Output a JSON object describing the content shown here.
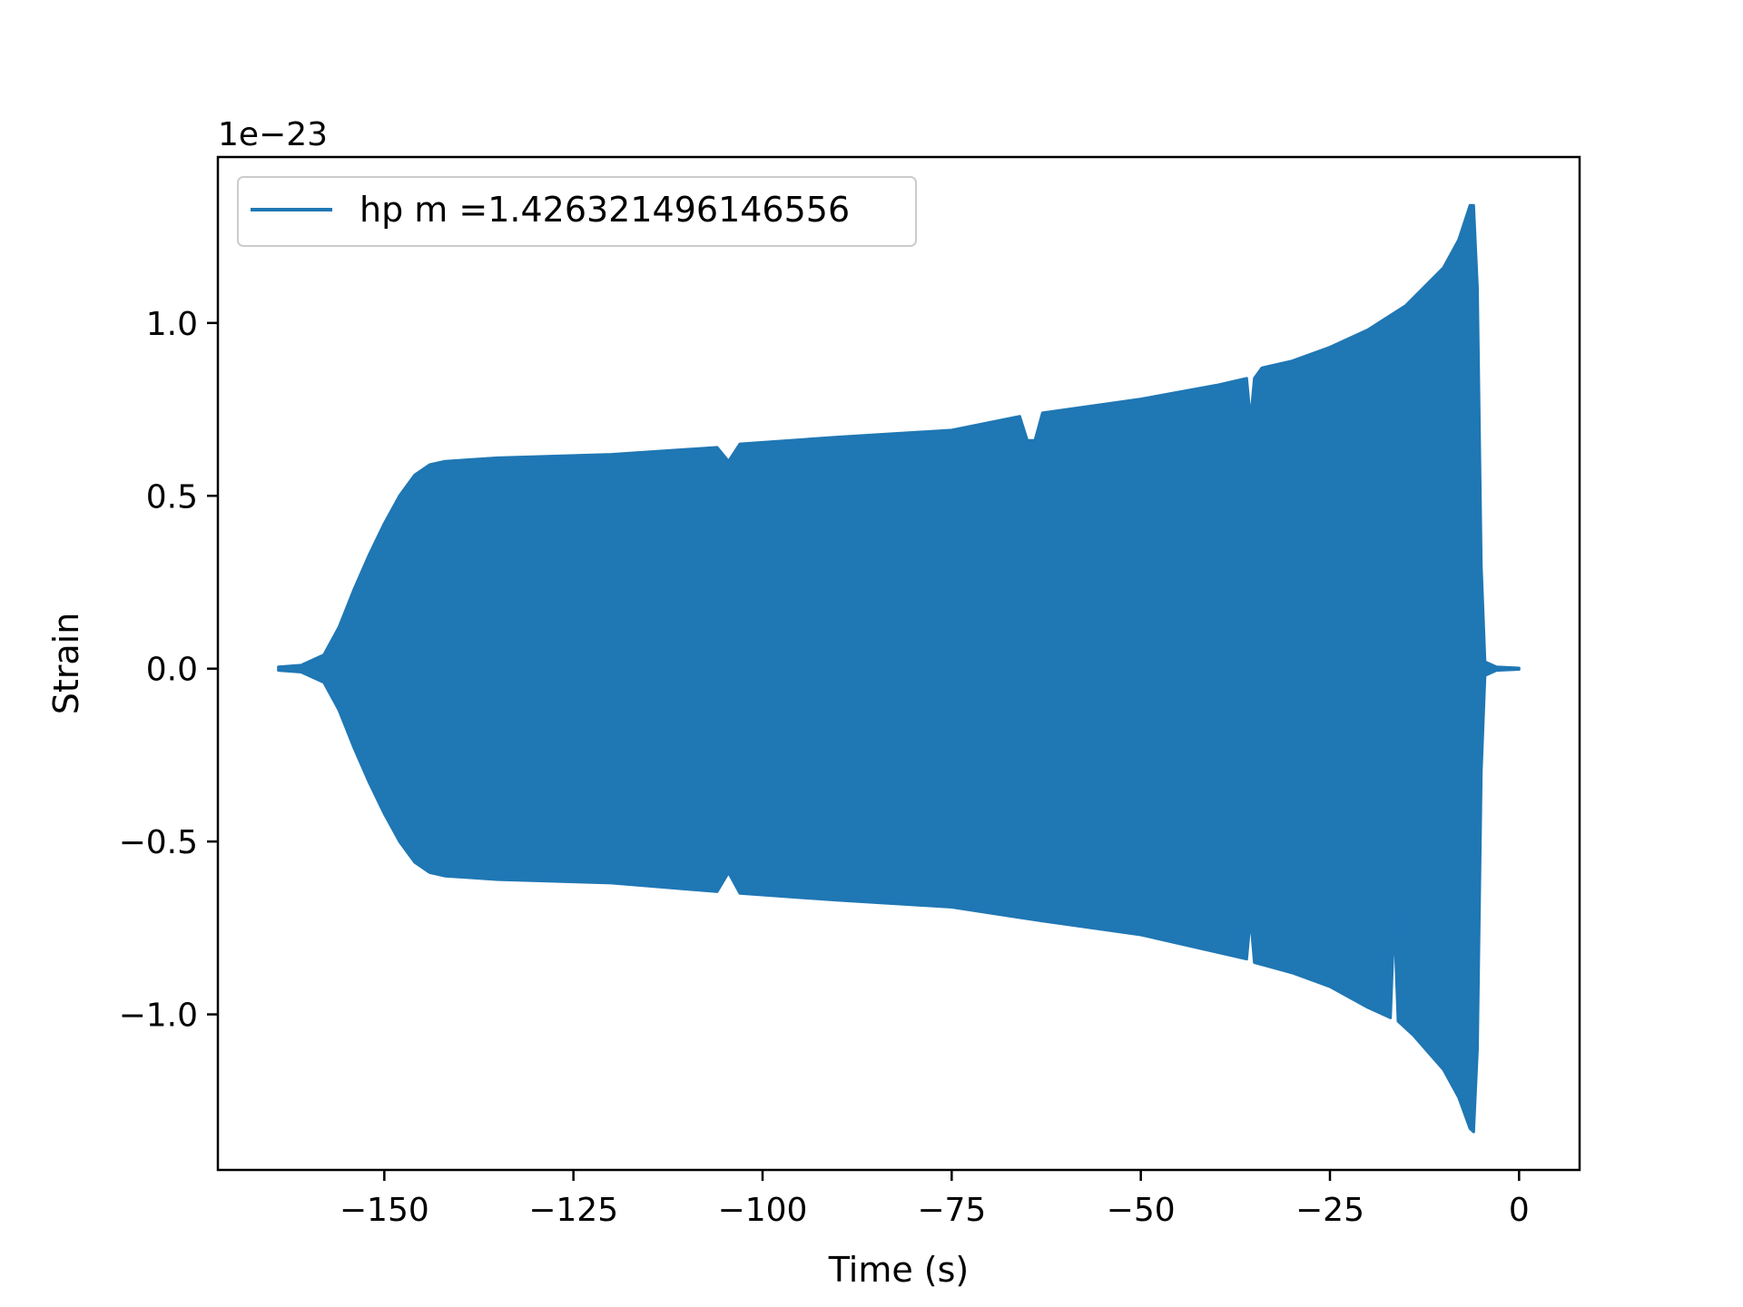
{
  "chart_data": {
    "type": "line",
    "xlabel": "Time (s)",
    "ylabel": "Strain",
    "y_offset_label": "1e−23",
    "xlim": [
      -172,
      8
    ],
    "ylim": [
      -1.45,
      1.48
    ],
    "xticks": [
      {
        "value": -150,
        "label": "−150"
      },
      {
        "value": -125,
        "label": "−125"
      },
      {
        "value": -100,
        "label": "−100"
      },
      {
        "value": -75,
        "label": "−75"
      },
      {
        "value": -50,
        "label": "−50"
      },
      {
        "value": -25,
        "label": "−25"
      },
      {
        "value": 0,
        "label": "0"
      }
    ],
    "yticks": [
      {
        "value": -1.0,
        "label": "−1.0"
      },
      {
        "value": -0.5,
        "label": "−0.5"
      },
      {
        "value": 0.0,
        "label": "0.0"
      },
      {
        "value": 0.5,
        "label": "0.5"
      },
      {
        "value": 1.0,
        "label": "1.0"
      }
    ],
    "grid": false,
    "legend_position": "top-left",
    "series": [
      {
        "name": "hp m =1.426321496146556",
        "color": "#1f77b4",
        "upper_envelope": [
          [
            -164,
            0.005
          ],
          [
            -161,
            0.01
          ],
          [
            -158,
            0.04
          ],
          [
            -156,
            0.12
          ],
          [
            -154,
            0.23
          ],
          [
            -152,
            0.33
          ],
          [
            -150,
            0.42
          ],
          [
            -148,
            0.5
          ],
          [
            -146,
            0.56
          ],
          [
            -144,
            0.59
          ],
          [
            -142,
            0.6
          ],
          [
            -135,
            0.61
          ],
          [
            -120,
            0.62
          ],
          [
            -106,
            0.64
          ],
          [
            -104.5,
            0.6
          ],
          [
            -103,
            0.65
          ],
          [
            -90,
            0.67
          ],
          [
            -75,
            0.69
          ],
          [
            -66,
            0.73
          ],
          [
            -65,
            0.66
          ],
          [
            -64,
            0.66
          ],
          [
            -63,
            0.74
          ],
          [
            -50,
            0.78
          ],
          [
            -40,
            0.82
          ],
          [
            -36,
            0.84
          ],
          [
            -35.5,
            0.72
          ],
          [
            -35,
            0.84
          ],
          [
            -34,
            0.87
          ],
          [
            -30,
            0.89
          ],
          [
            -25,
            0.93
          ],
          [
            -20,
            0.98
          ],
          [
            -15,
            1.05
          ],
          [
            -10,
            1.16
          ],
          [
            -8,
            1.24
          ],
          [
            -6.5,
            1.34
          ],
          [
            -6,
            1.34
          ],
          [
            -5.5,
            1.1
          ],
          [
            -5,
            0.3
          ],
          [
            -4.5,
            0.02
          ],
          [
            -3,
            0.005
          ],
          [
            0,
            0.002
          ]
        ],
        "lower_envelope": [
          [
            -164,
            -0.005
          ],
          [
            -161,
            -0.01
          ],
          [
            -158,
            -0.04
          ],
          [
            -156,
            -0.12
          ],
          [
            -154,
            -0.23
          ],
          [
            -152,
            -0.33
          ],
          [
            -150,
            -0.42
          ],
          [
            -148,
            -0.5
          ],
          [
            -146,
            -0.56
          ],
          [
            -144,
            -0.59
          ],
          [
            -142,
            -0.6
          ],
          [
            -135,
            -0.61
          ],
          [
            -120,
            -0.62
          ],
          [
            -106,
            -0.645
          ],
          [
            -104.5,
            -0.59
          ],
          [
            -103,
            -0.65
          ],
          [
            -90,
            -0.67
          ],
          [
            -75,
            -0.69
          ],
          [
            -66,
            -0.72
          ],
          [
            -63,
            -0.73
          ],
          [
            -50,
            -0.77
          ],
          [
            -40,
            -0.82
          ],
          [
            -36,
            -0.84
          ],
          [
            -35.5,
            -0.72
          ],
          [
            -35,
            -0.85
          ],
          [
            -30,
            -0.88
          ],
          [
            -25,
            -0.92
          ],
          [
            -20,
            -0.98
          ],
          [
            -17,
            -1.01
          ],
          [
            -16.5,
            -0.72
          ],
          [
            -16,
            -1.02
          ],
          [
            -14,
            -1.06
          ],
          [
            -12,
            -1.11
          ],
          [
            -10,
            -1.16
          ],
          [
            -8,
            -1.24
          ],
          [
            -6.5,
            -1.33
          ],
          [
            -6,
            -1.34
          ],
          [
            -5.5,
            -1.1
          ],
          [
            -5,
            -0.3
          ],
          [
            -4.5,
            -0.02
          ],
          [
            -3,
            -0.005
          ],
          [
            0,
            -0.002
          ]
        ]
      }
    ]
  }
}
